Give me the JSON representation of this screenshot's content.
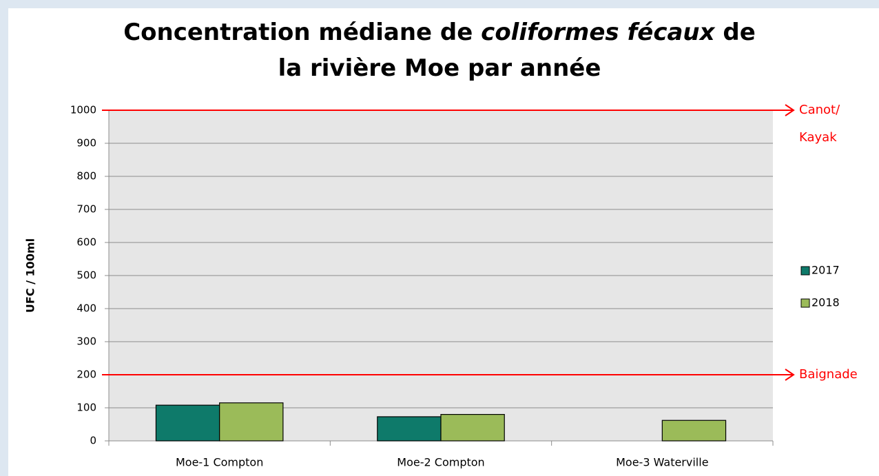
{
  "chart_data": {
    "type": "bar",
    "title_lines": [
      [
        {
          "text": "Concentration médiane de "
        },
        {
          "text": "coliformes fécaux",
          "italic": true
        },
        {
          "text": " de"
        }
      ],
      [
        {
          "text": "la rivière Moe par année"
        }
      ]
    ],
    "y_label": "UFC / 100ml",
    "categories": [
      "Moe-1 Compton",
      "Moe-2 Compton",
      "Moe-3 Waterville"
    ],
    "series": [
      {
        "name": "2017",
        "color": "#0e7a6a",
        "values": [
          108,
          73,
          null
        ]
      },
      {
        "name": "2018",
        "color": "#9bbb59",
        "values": [
          115,
          80,
          62
        ]
      }
    ],
    "ylim": [
      0,
      1000
    ],
    "yticks": [
      0,
      100,
      200,
      300,
      400,
      500,
      600,
      700,
      800,
      900,
      1000
    ],
    "grid": true,
    "legend": "right",
    "reference_lines": [
      {
        "value": 1000,
        "label": [
          "Canot/",
          "Kayak"
        ],
        "color": "#ff0000"
      },
      {
        "value": 200,
        "label": [
          "Baignade"
        ],
        "color": "#ff0000"
      }
    ]
  }
}
